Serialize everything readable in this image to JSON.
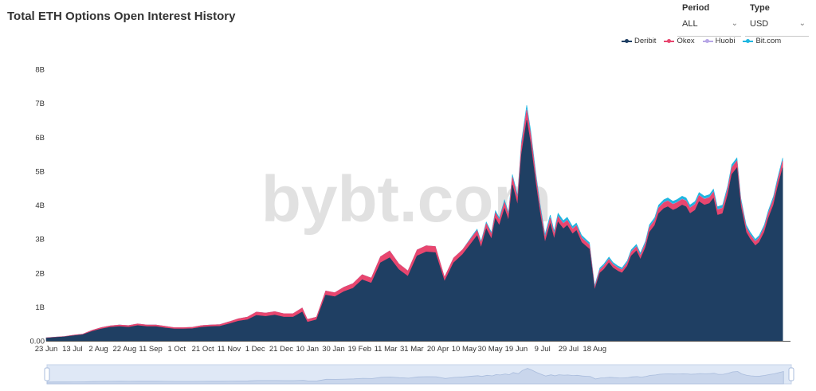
{
  "title": "Total ETH Options Open Interest History",
  "controls": {
    "period": {
      "label": "Period",
      "value": "ALL"
    },
    "type": {
      "label": "Type",
      "value": "USD"
    }
  },
  "watermark": "bybt.com",
  "colors": {
    "deribit": "#1f3f63",
    "okex": "#e8466f",
    "huobi": "#b7a7e6",
    "bitcom": "#1fb6e0"
  },
  "chart_data": {
    "type": "area",
    "stacked": true,
    "title": "Total ETH Options Open Interest History",
    "yticks": [
      "0.00",
      "1B",
      "2B",
      "3B",
      "4B",
      "5B",
      "6B",
      "7B",
      "8B"
    ],
    "ylim": [
      0,
      8
    ],
    "yunit": "B USD",
    "xticks": [
      "23 Jun",
      "13 Jul",
      "2 Aug",
      "22 Aug",
      "11 Sep",
      "1 Oct",
      "21 Oct",
      "11 Nov",
      "1 Dec",
      "21 Dec",
      "10 Jan",
      "30 Jan",
      "19 Feb",
      "11 Mar",
      "31 Mar",
      "20 Apr",
      "10 May",
      "30 May",
      "19 Jun",
      "9 Jul",
      "29 Jul",
      "18 Aug"
    ],
    "legend_position": "top-right",
    "x_days": [
      0,
      7,
      14,
      21,
      28,
      35,
      42,
      49,
      56,
      63,
      70,
      77,
      84,
      91,
      98,
      105,
      112,
      119,
      126,
      133,
      140,
      147,
      154,
      161,
      168,
      175,
      182,
      189,
      196,
      200,
      207,
      214,
      221,
      228,
      235,
      242,
      249,
      256,
      263,
      270,
      277,
      284,
      291,
      298,
      305,
      312,
      319,
      326,
      330,
      333,
      337,
      341,
      344,
      347,
      351,
      354,
      357,
      361,
      364,
      368,
      371,
      375,
      378,
      382,
      386,
      389,
      392,
      396,
      399,
      403,
      406,
      410,
      413,
      416,
      420,
      424,
      427,
      431,
      434,
      438,
      441,
      445,
      448,
      452,
      455,
      459,
      462,
      466,
      469,
      473,
      476,
      480,
      483,
      487,
      490,
      493,
      497,
      500,
      504,
      508,
      511,
      514,
      518,
      522,
      525,
      529,
      532,
      536,
      539,
      543,
      546,
      550,
      553,
      557,
      560,
      564
    ],
    "series": [
      {
        "name": "Deribit",
        "values": [
          0.08,
          0.1,
          0.12,
          0.15,
          0.18,
          0.28,
          0.35,
          0.4,
          0.42,
          0.4,
          0.45,
          0.42,
          0.42,
          0.38,
          0.35,
          0.35,
          0.36,
          0.4,
          0.42,
          0.43,
          0.5,
          0.58,
          0.62,
          0.75,
          0.72,
          0.76,
          0.7,
          0.7,
          0.85,
          0.55,
          0.62,
          1.35,
          1.3,
          1.45,
          1.55,
          1.8,
          1.7,
          2.3,
          2.45,
          2.1,
          1.9,
          2.5,
          2.62,
          2.6,
          1.75,
          2.3,
          2.55,
          2.9,
          3.1,
          2.75,
          3.3,
          3.0,
          3.6,
          3.4,
          3.9,
          3.55,
          4.6,
          4.0,
          5.5,
          6.5,
          5.8,
          4.6,
          3.8,
          2.9,
          3.45,
          3.0,
          3.5,
          3.3,
          3.4,
          3.15,
          3.25,
          2.9,
          2.8,
          2.7,
          1.5,
          2.0,
          2.1,
          2.3,
          2.15,
          2.05,
          2.0,
          2.2,
          2.5,
          2.65,
          2.4,
          2.75,
          3.2,
          3.4,
          3.75,
          3.9,
          3.95,
          3.85,
          3.9,
          4.0,
          3.95,
          3.75,
          3.85,
          4.1,
          4.0,
          4.05,
          4.2,
          3.7,
          3.75,
          4.3,
          4.9,
          5.1,
          3.95,
          3.2,
          3.0,
          2.8,
          2.9,
          3.2,
          3.6,
          4.0,
          4.5,
          5.1
        ]
      },
      {
        "name": "Okex",
        "values": [
          0.01,
          0.01,
          0.01,
          0.02,
          0.02,
          0.03,
          0.04,
          0.04,
          0.05,
          0.05,
          0.05,
          0.05,
          0.05,
          0.05,
          0.04,
          0.04,
          0.04,
          0.05,
          0.05,
          0.05,
          0.06,
          0.07,
          0.08,
          0.1,
          0.1,
          0.1,
          0.1,
          0.1,
          0.12,
          0.08,
          0.08,
          0.12,
          0.12,
          0.13,
          0.14,
          0.15,
          0.15,
          0.18,
          0.2,
          0.17,
          0.16,
          0.18,
          0.18,
          0.18,
          0.12,
          0.14,
          0.14,
          0.15,
          0.15,
          0.14,
          0.15,
          0.14,
          0.17,
          0.16,
          0.18,
          0.16,
          0.22,
          0.2,
          0.26,
          0.3,
          0.28,
          0.22,
          0.18,
          0.14,
          0.16,
          0.14,
          0.16,
          0.15,
          0.15,
          0.14,
          0.14,
          0.13,
          0.13,
          0.12,
          0.07,
          0.09,
          0.1,
          0.1,
          0.1,
          0.09,
          0.09,
          0.1,
          0.11,
          0.12,
          0.11,
          0.12,
          0.14,
          0.15,
          0.16,
          0.17,
          0.17,
          0.17,
          0.17,
          0.17,
          0.17,
          0.16,
          0.17,
          0.18,
          0.17,
          0.17,
          0.18,
          0.16,
          0.16,
          0.18,
          0.2,
          0.2,
          0.16,
          0.14,
          0.13,
          0.12,
          0.13,
          0.14,
          0.15,
          0.17,
          0.18,
          0.2
        ]
      },
      {
        "name": "Huobi",
        "values": [
          0,
          0,
          0,
          0,
          0,
          0,
          0,
          0,
          0,
          0,
          0,
          0,
          0,
          0,
          0,
          0,
          0,
          0,
          0,
          0,
          0,
          0,
          0,
          0,
          0,
          0,
          0,
          0,
          0,
          0,
          0,
          0,
          0,
          0,
          0,
          0,
          0,
          0,
          0,
          0,
          0,
          0,
          0,
          0,
          0,
          0,
          0,
          0,
          0,
          0,
          0,
          0,
          0,
          0,
          0,
          0,
          0,
          0,
          0.02,
          0.02,
          0.02,
          0.02,
          0.02,
          0.01,
          0.01,
          0.01,
          0.01,
          0.01,
          0.01,
          0.01,
          0.01,
          0.01,
          0.01,
          0.01,
          0.01,
          0.01,
          0.01,
          0.01,
          0.01,
          0.01,
          0.01,
          0.01,
          0.01,
          0.01,
          0.01,
          0.01,
          0.01,
          0.01,
          0.01,
          0.01,
          0.01,
          0.01,
          0.01,
          0.01,
          0.01,
          0.01,
          0.01,
          0.01,
          0.01,
          0.01,
          0.01,
          0.01,
          0.01,
          0.01,
          0.01,
          0.01,
          0.01,
          0.01,
          0.01,
          0.01,
          0.01,
          0.01,
          0.01,
          0.01,
          0.01,
          0.01
        ]
      },
      {
        "name": "Bit.com",
        "values": [
          0,
          0,
          0,
          0,
          0,
          0,
          0,
          0,
          0,
          0,
          0,
          0,
          0,
          0,
          0,
          0,
          0,
          0,
          0,
          0,
          0,
          0,
          0,
          0,
          0,
          0,
          0,
          0,
          0,
          0,
          0,
          0,
          0,
          0,
          0,
          0,
          0,
          0,
          0,
          0,
          0,
          0,
          0,
          0,
          0,
          0,
          0,
          0.03,
          0.04,
          0.04,
          0.05,
          0.05,
          0.06,
          0.06,
          0.07,
          0.07,
          0.08,
          0.08,
          0.1,
          0.12,
          0.1,
          0.09,
          0.08,
          0.08,
          0.09,
          0.08,
          0.09,
          0.08,
          0.08,
          0.07,
          0.07,
          0.07,
          0.06,
          0.06,
          0.04,
          0.05,
          0.05,
          0.06,
          0.05,
          0.05,
          0.05,
          0.05,
          0.06,
          0.06,
          0.06,
          0.06,
          0.07,
          0.07,
          0.08,
          0.08,
          0.08,
          0.08,
          0.08,
          0.08,
          0.08,
          0.08,
          0.08,
          0.08,
          0.08,
          0.08,
          0.08,
          0.08,
          0.08,
          0.08,
          0.08,
          0.08,
          0.08,
          0.07,
          0.07,
          0.06,
          0.06,
          0.07,
          0.07,
          0.08,
          0.08,
          0.08
        ]
      }
    ]
  }
}
